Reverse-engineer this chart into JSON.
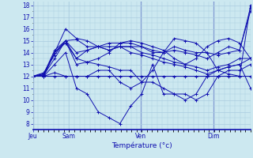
{
  "xlabel": "Température (°c)",
  "ylim": [
    7.5,
    18.3
  ],
  "xlim": [
    0.0,
    1.0
  ],
  "yticks": [
    8,
    9,
    10,
    11,
    12,
    13,
    14,
    15,
    16,
    17,
    18
  ],
  "bg_color": "#cce8f0",
  "grid_color": "#aacce0",
  "line_color": "#1010b0",
  "xtick_pos": [
    0.0,
    0.165,
    0.495,
    0.83
  ],
  "xtick_labels": [
    "Jeu",
    "Sam",
    "Ven",
    "Dim"
  ],
  "vline_pos": [
    0.0,
    0.495,
    0.83
  ],
  "curves": [
    [
      12.0,
      12.2,
      14.2,
      15.0,
      15.1,
      14.5,
      14.5,
      14.8,
      14.8,
      14.8,
      14.5,
      14.2,
      14.0,
      14.5,
      14.2,
      14.0,
      14.0,
      13.8,
      14.0,
      14.2,
      17.5
    ],
    [
      12.0,
      12.1,
      14.0,
      16.0,
      15.2,
      15.0,
      14.5,
      14.2,
      14.5,
      14.5,
      14.5,
      14.0,
      14.0,
      14.2,
      14.0,
      13.8,
      13.5,
      14.0,
      14.5,
      14.2,
      17.8
    ],
    [
      12.0,
      12.3,
      13.8,
      15.0,
      13.5,
      13.2,
      13.5,
      14.0,
      14.8,
      15.0,
      14.8,
      14.5,
      14.2,
      13.5,
      13.0,
      13.5,
      14.5,
      15.0,
      15.2,
      14.8,
      13.5
    ],
    [
      12.0,
      12.2,
      14.0,
      14.8,
      13.5,
      14.2,
      14.5,
      14.2,
      14.5,
      14.5,
      14.0,
      13.8,
      13.5,
      13.2,
      13.0,
      12.8,
      12.5,
      12.8,
      13.0,
      13.5,
      13.5
    ],
    [
      12.0,
      12.1,
      13.5,
      15.0,
      14.0,
      14.2,
      14.5,
      14.5,
      14.5,
      14.0,
      13.8,
      13.5,
      13.2,
      13.0,
      12.8,
      12.5,
      12.2,
      12.5,
      12.8,
      13.0,
      13.5
    ],
    [
      12.0,
      12.0,
      14.0,
      15.0,
      13.0,
      13.2,
      13.0,
      12.8,
      12.5,
      12.5,
      11.5,
      11.5,
      11.0,
      10.5,
      10.5,
      10.0,
      10.5,
      12.0,
      12.5,
      12.5,
      13.0
    ],
    [
      12.0,
      12.0,
      13.0,
      14.0,
      11.0,
      10.5,
      9.0,
      8.5,
      8.0,
      9.5,
      10.5,
      13.0,
      10.5,
      10.5,
      10.0,
      10.5,
      12.0,
      12.5,
      12.8,
      13.0,
      11.0
    ],
    [
      12.0,
      12.0,
      12.3,
      12.0,
      12.0,
      12.0,
      12.5,
      12.5,
      11.5,
      11.0,
      11.5,
      12.5,
      14.0,
      15.2,
      15.0,
      14.8,
      14.0,
      12.5,
      12.2,
      12.0,
      12.0
    ],
    [
      12.0,
      12.0,
      12.0,
      12.0,
      12.0,
      12.0,
      12.0,
      12.0,
      12.0,
      12.0,
      12.0,
      12.0,
      12.0,
      12.0,
      12.0,
      12.0,
      12.0,
      12.0,
      12.0,
      12.0,
      18.0
    ]
  ],
  "n_points": 21
}
